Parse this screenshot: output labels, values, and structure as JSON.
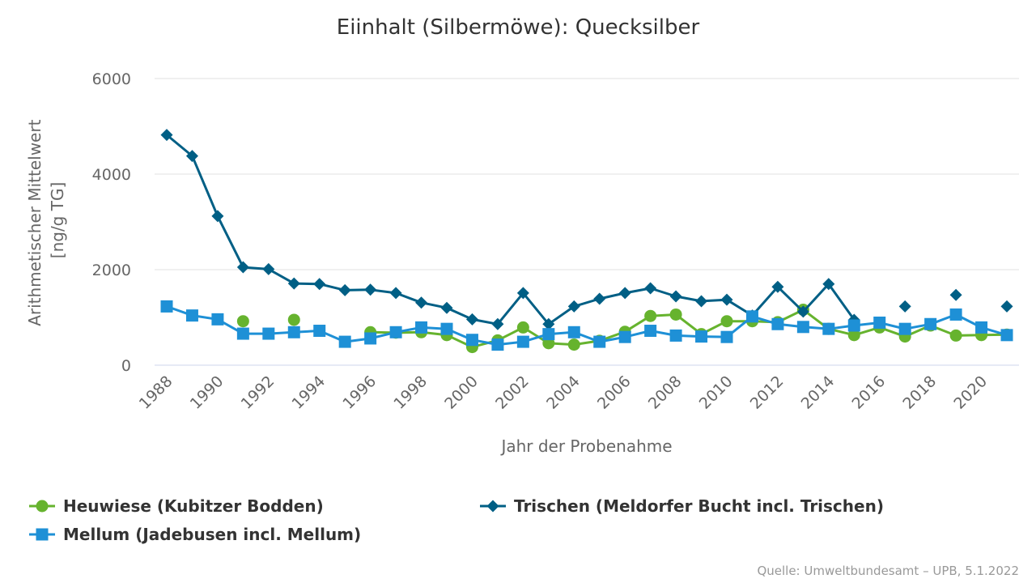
{
  "chart_data": {
    "type": "line",
    "title": "Eiinhalt (Silbermöwe): Quecksilber",
    "xlabel": "Jahr der Probenahme",
    "ylabel": [
      "Arithmetischer Mittelwert",
      "[ng/g TG]"
    ],
    "ylim": [
      0,
      6000
    ],
    "xlim": [
      1988,
      2021
    ],
    "yticks": [
      0,
      2000,
      4000,
      6000
    ],
    "xticks": [
      1988,
      1990,
      1992,
      1994,
      1996,
      1998,
      2000,
      2002,
      2004,
      2006,
      2008,
      2010,
      2012,
      2014,
      2016,
      2018,
      2020
    ],
    "grid": true,
    "legend_position": "bottom",
    "series": [
      {
        "name": "Heuwiese (Kubitzer Bodden)",
        "color": "#66b32e",
        "marker": "circle",
        "points": [
          [
            1991,
            920
          ],
          [
            1993,
            950
          ],
          [
            1996,
            690
          ],
          [
            1997,
            680
          ],
          [
            1998,
            690
          ],
          [
            1999,
            630
          ],
          [
            2000,
            380
          ],
          [
            2001,
            520
          ],
          [
            2002,
            790
          ],
          [
            2003,
            460
          ],
          [
            2004,
            430
          ],
          [
            2005,
            510
          ],
          [
            2006,
            700
          ],
          [
            2007,
            1030
          ],
          [
            2008,
            1060
          ],
          [
            2009,
            650
          ],
          [
            2010,
            920
          ],
          [
            2011,
            920
          ],
          [
            2012,
            900
          ],
          [
            2013,
            1160
          ],
          [
            2014,
            760
          ],
          [
            2015,
            630
          ],
          [
            2016,
            790
          ],
          [
            2017,
            600
          ],
          [
            2018,
            830
          ],
          [
            2019,
            620
          ],
          [
            2020,
            630
          ],
          [
            2021,
            640
          ]
        ]
      },
      {
        "name": "Trischen (Meldorfer Bucht incl. Trischen)",
        "color": "#005f85",
        "marker": "diamond",
        "points": [
          [
            1988,
            4820
          ],
          [
            1989,
            4380
          ],
          [
            1990,
            3120
          ],
          [
            1991,
            2050
          ],
          [
            1992,
            2010
          ],
          [
            1993,
            1710
          ],
          [
            1994,
            1700
          ],
          [
            1995,
            1570
          ],
          [
            1996,
            1580
          ],
          [
            1997,
            1510
          ],
          [
            1998,
            1310
          ],
          [
            1999,
            1200
          ],
          [
            2000,
            960
          ],
          [
            2001,
            860
          ],
          [
            2002,
            1510
          ],
          [
            2003,
            860
          ],
          [
            2004,
            1230
          ],
          [
            2005,
            1390
          ],
          [
            2006,
            1510
          ],
          [
            2007,
            1610
          ],
          [
            2008,
            1440
          ],
          [
            2009,
            1340
          ],
          [
            2010,
            1370
          ],
          [
            2011,
            1040
          ],
          [
            2012,
            1640
          ],
          [
            2013,
            1120
          ],
          [
            2014,
            1700
          ],
          [
            2015,
            950
          ],
          [
            2017,
            1230
          ],
          [
            2019,
            1470
          ],
          [
            2021,
            1230
          ]
        ]
      },
      {
        "name": "Mellum (Jadebusen incl. Mellum)",
        "color": "#1e90d6",
        "marker": "square",
        "points": [
          [
            1988,
            1230
          ],
          [
            1989,
            1040
          ],
          [
            1990,
            960
          ],
          [
            1991,
            660
          ],
          [
            1992,
            660
          ],
          [
            1993,
            690
          ],
          [
            1994,
            720
          ],
          [
            1995,
            490
          ],
          [
            1996,
            560
          ],
          [
            1997,
            690
          ],
          [
            1998,
            790
          ],
          [
            1999,
            760
          ],
          [
            2000,
            530
          ],
          [
            2001,
            430
          ],
          [
            2002,
            490
          ],
          [
            2003,
            650
          ],
          [
            2004,
            690
          ],
          [
            2005,
            490
          ],
          [
            2006,
            590
          ],
          [
            2007,
            720
          ],
          [
            2008,
            620
          ],
          [
            2009,
            600
          ],
          [
            2010,
            590
          ],
          [
            2011,
            1020
          ],
          [
            2012,
            860
          ],
          [
            2013,
            800
          ],
          [
            2014,
            760
          ],
          [
            2015,
            830
          ],
          [
            2016,
            890
          ],
          [
            2017,
            760
          ],
          [
            2018,
            860
          ],
          [
            2019,
            1060
          ],
          [
            2020,
            790
          ],
          [
            2021,
            630
          ]
        ]
      }
    ]
  },
  "credit": "Quelle: Umweltbundesamt – UPB, 5.1.2022"
}
